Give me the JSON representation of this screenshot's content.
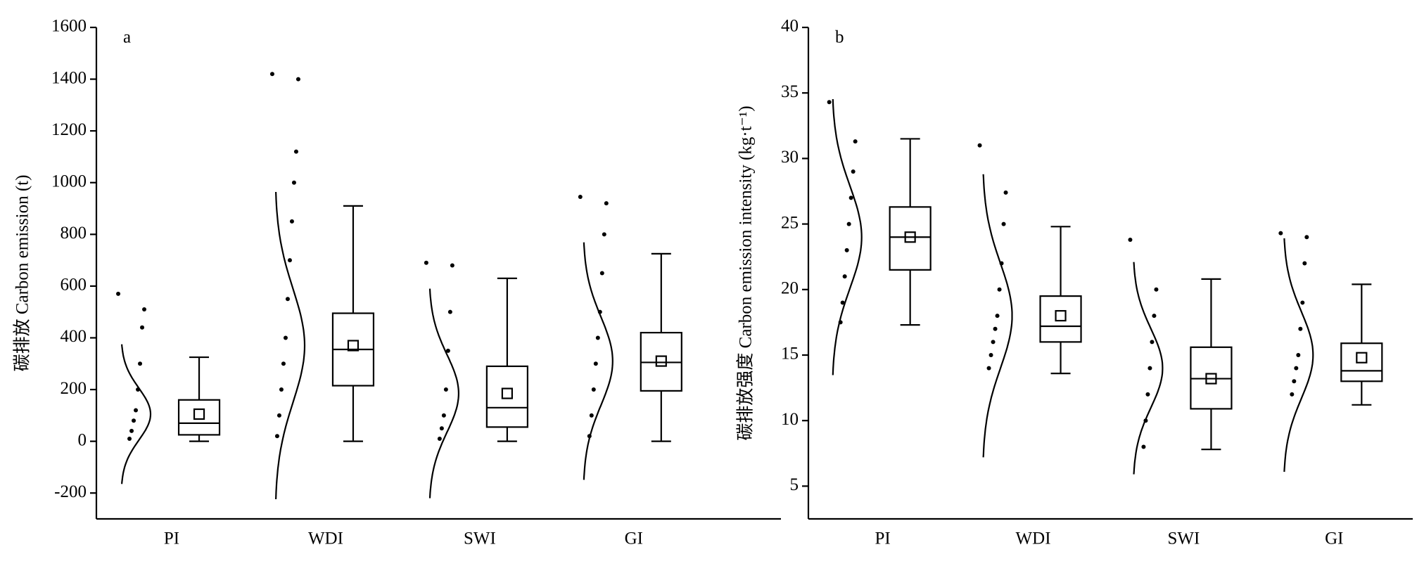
{
  "chart_data": [
    {
      "type": "box",
      "panel_label": "a",
      "ylabel": "碳排放 Carbon emission (t)",
      "categories": [
        "PI",
        "WDI",
        "SWI",
        "GI"
      ],
      "boxes": [
        {
          "min": 0,
          "q1": 25,
          "median": 70,
          "q3": 160,
          "max": 325,
          "mean": 105
        },
        {
          "min": 0,
          "q1": 215,
          "median": 355,
          "q3": 495,
          "max": 910,
          "mean": 370
        },
        {
          "min": 0,
          "q1": 55,
          "median": 130,
          "q3": 290,
          "max": 630,
          "mean": 185
        },
        {
          "min": 0,
          "q1": 195,
          "median": 305,
          "q3": 420,
          "max": 725,
          "mean": 310
        }
      ],
      "curves": [
        {
          "mean": 105,
          "sd": 100
        },
        {
          "mean": 370,
          "sd": 220
        },
        {
          "mean": 185,
          "sd": 150
        },
        {
          "mean": 310,
          "sd": 170
        }
      ],
      "points": [
        [
          570,
          510,
          440,
          300,
          200,
          120,
          80,
          40,
          10
        ],
        [
          1420,
          1400,
          1120,
          1000,
          850,
          700,
          550,
          400,
          300,
          200,
          100,
          20
        ],
        [
          690,
          680,
          500,
          350,
          200,
          100,
          50,
          10
        ],
        [
          945,
          920,
          800,
          650,
          500,
          400,
          300,
          200,
          100,
          20
        ]
      ],
      "color": "#000000",
      "ylim": [
        -300,
        1600
      ],
      "yticks": [
        -200,
        0,
        200,
        400,
        600,
        800,
        1000,
        1200,
        1400,
        1600
      ]
    },
    {
      "type": "box",
      "panel_label": "b",
      "ylabel": "碳排放强度 Carbon emission intensity (kg·t⁻¹)",
      "categories": [
        "PI",
        "WDI",
        "SWI",
        "GI"
      ],
      "boxes": [
        {
          "min": 17.3,
          "q1": 21.5,
          "median": 24.0,
          "q3": 26.3,
          "max": 31.5,
          "mean": 24.0
        },
        {
          "min": 13.6,
          "q1": 16.0,
          "median": 17.2,
          "q3": 19.5,
          "max": 24.8,
          "mean": 18.0
        },
        {
          "min": 7.8,
          "q1": 10.9,
          "median": 13.2,
          "q3": 15.6,
          "max": 20.8,
          "mean": 13.2
        },
        {
          "min": 11.2,
          "q1": 13.0,
          "median": 13.8,
          "q3": 15.9,
          "max": 20.4,
          "mean": 14.8
        }
      ],
      "curves": [
        {
          "mean": 24,
          "sd": 3.9
        },
        {
          "mean": 18,
          "sd": 4
        },
        {
          "mean": 14,
          "sd": 3
        },
        {
          "mean": 15,
          "sd": 3.3
        }
      ],
      "points": [
        [
          34.3,
          31.3,
          29,
          27,
          25,
          23,
          21,
          19,
          17.5
        ],
        [
          31,
          27.4,
          25,
          22,
          20,
          18,
          17,
          16,
          15,
          14
        ],
        [
          23.8,
          20,
          18,
          16,
          14,
          12,
          10,
          8
        ],
        [
          24.3,
          24,
          22,
          19,
          17,
          15,
          14,
          13,
          12
        ]
      ],
      "color": "#000000",
      "ylim": [
        2.5,
        40
      ],
      "yticks": [
        5,
        10,
        15,
        20,
        25,
        30,
        35,
        40
      ]
    }
  ]
}
